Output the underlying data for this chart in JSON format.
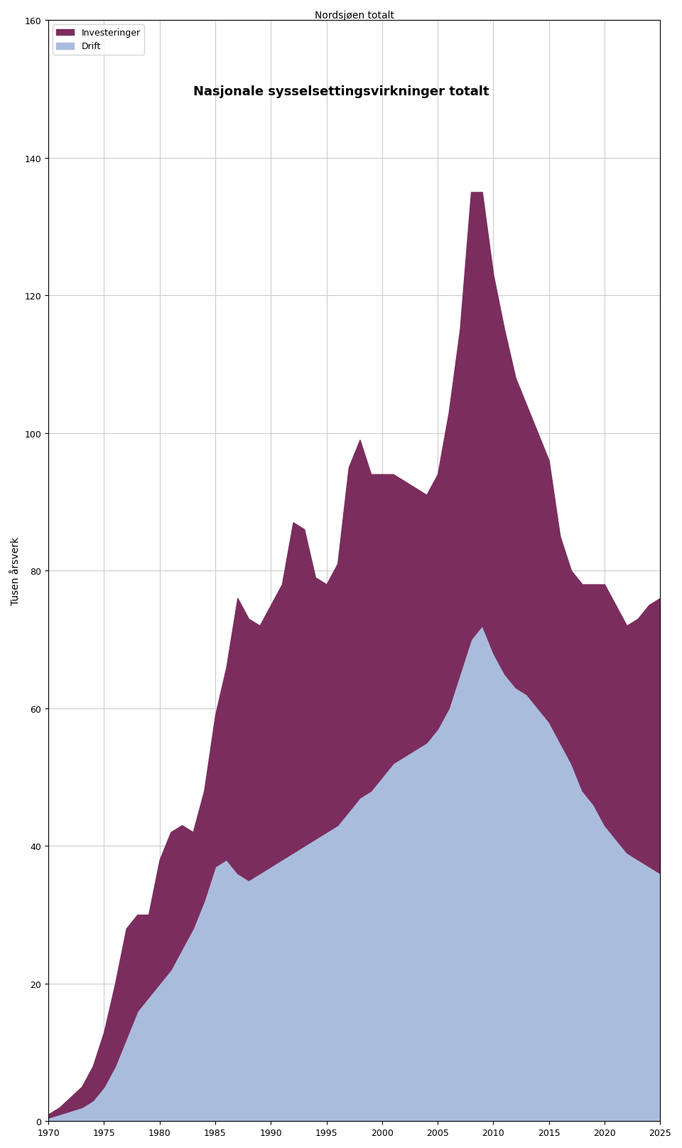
{
  "title": "Nasjonale sysselsettingsvirkninger totalt",
  "subtitle": "Nordsjøen totalt",
  "ylabel": "Tusen årsverk",
  "legend_investeringer": "Investeringer",
  "legend_drift": "Drift",
  "color_investeringer": "#7B2D5E",
  "color_drift": "#AABCDC",
  "background_color": "#FFFFFF",
  "grid_color": "#CCCCCC",
  "xlim": [
    1970,
    2025
  ],
  "ylim": [
    0,
    160
  ],
  "yticks": [
    0,
    20,
    40,
    60,
    80,
    100,
    120,
    140,
    160
  ],
  "xticks": [
    1970,
    1975,
    1980,
    1985,
    1990,
    1995,
    2000,
    2005,
    2010,
    2015,
    2020,
    2025
  ],
  "years": [
    1970,
    1971,
    1972,
    1973,
    1974,
    1975,
    1976,
    1977,
    1978,
    1979,
    1980,
    1981,
    1982,
    1983,
    1984,
    1985,
    1986,
    1987,
    1988,
    1989,
    1990,
    1991,
    1992,
    1993,
    1994,
    1995,
    1996,
    1997,
    1998,
    1999,
    2000,
    2001,
    2002,
    2003,
    2004,
    2005,
    2006,
    2007,
    2008,
    2009,
    2010,
    2011,
    2012,
    2013,
    2014,
    2015,
    2016,
    2017,
    2018,
    2019,
    2020,
    2021,
    2022,
    2023,
    2024,
    2025
  ],
  "drift": [
    0.5,
    1.0,
    1.5,
    2.0,
    3.0,
    5.0,
    8.0,
    12.0,
    16.0,
    18.0,
    20.0,
    22.0,
    25.0,
    28.0,
    32.0,
    37.0,
    38.0,
    36.0,
    35.0,
    36.0,
    37.0,
    38.0,
    39.0,
    40.0,
    41.0,
    42.0,
    43.0,
    45.0,
    47.0,
    48.0,
    50.0,
    52.0,
    53.0,
    54.0,
    55.0,
    57.0,
    60.0,
    65.0,
    70.0,
    72.0,
    68.0,
    65.0,
    63.0,
    62.0,
    60.0,
    58.0,
    55.0,
    52.0,
    48.0,
    46.0,
    43.0,
    41.0,
    39.0,
    38.0,
    37.0,
    36.0
  ],
  "investeringer": [
    0.5,
    1.0,
    2.0,
    3.0,
    5.0,
    8.0,
    12.0,
    16.0,
    14.0,
    12.0,
    18.0,
    20.0,
    18.0,
    14.0,
    16.0,
    22.0,
    28.0,
    40.0,
    38.0,
    36.0,
    38.0,
    40.0,
    48.0,
    46.0,
    38.0,
    36.0,
    38.0,
    50.0,
    52.0,
    46.0,
    44.0,
    42.0,
    40.0,
    38.0,
    36.0,
    37.0,
    43.0,
    50.0,
    65.0,
    63.0,
    55.0,
    50.0,
    45.0,
    42.0,
    40.0,
    38.0,
    30.0,
    28.0,
    30.0,
    32.0,
    35.0,
    34.0,
    33.0,
    35.0,
    38.0,
    40.0
  ]
}
